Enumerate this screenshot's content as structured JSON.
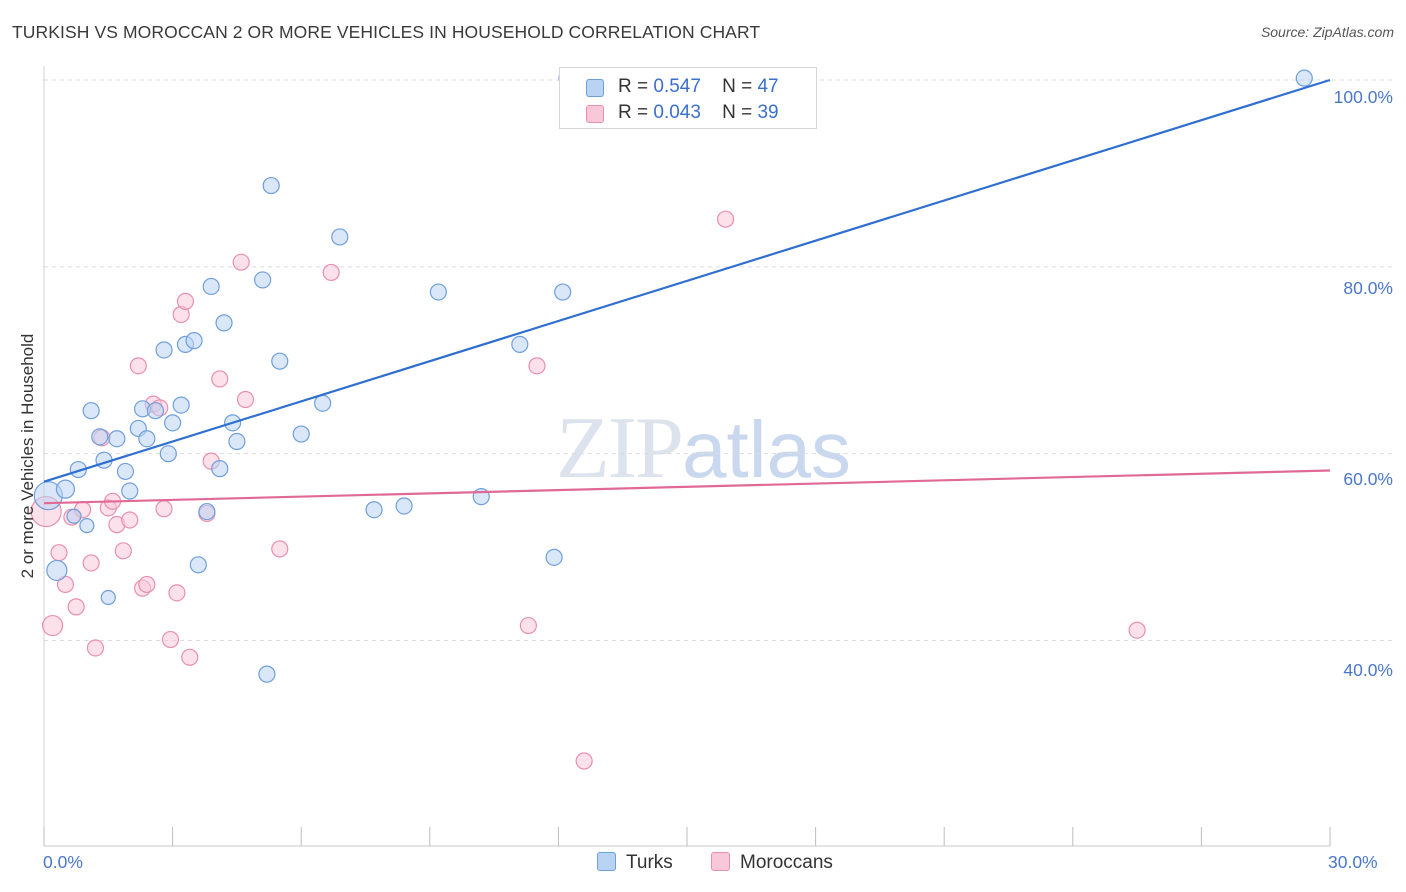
{
  "header": {
    "title": "TURKISH VS MOROCCAN 2 OR MORE VEHICLES IN HOUSEHOLD CORRELATION CHART",
    "source": "Source: ZipAtlas.com"
  },
  "watermark": {
    "zip": "ZIP",
    "atlas": "atlas"
  },
  "legend": {
    "rows": [
      {
        "r_label": "R =",
        "r_value": "0.547",
        "n_label": "N =",
        "n_value": "47"
      },
      {
        "r_label": "R =",
        "r_value": "0.043",
        "n_label": "N =",
        "n_value": "39"
      }
    ]
  },
  "bottom_legend": {
    "turks": "Turks",
    "moroccans": "Moroccans"
  },
  "colors": {
    "turks_fill": "#b9d3f3",
    "turks_stroke": "#6f9fdc",
    "turks_line": "#2f6fd0",
    "moroccans_fill": "#f9c8d8",
    "moroccans_stroke": "#e98fad",
    "moroccans_line": "#e06a95",
    "grid": "#dcdcdc",
    "tick_text": "#4a77c9"
  },
  "chart_data": {
    "type": "scatter",
    "title": "TURKISH VS MOROCCAN 2 OR MORE VEHICLES IN HOUSEHOLD CORRELATION CHART",
    "xlabel": "",
    "ylabel": "2 or more Vehicles in Household",
    "xlim": [
      0,
      30
    ],
    "ylim": [
      18,
      101.5
    ],
    "x_tick_labels": [
      "0.0%",
      "30.0%"
    ],
    "y_ticks": [
      40,
      60,
      80,
      100
    ],
    "y_tick_labels": [
      "40.0%",
      "60.0%",
      "80.0%",
      "100.0%"
    ],
    "grid": true,
    "legend_position": "top-center",
    "series": [
      {
        "name": "Turks",
        "r": 0.547,
        "n": 47,
        "trend": [
          [
            0,
            57.0
          ],
          [
            30,
            100.0
          ]
        ],
        "points": [
          [
            0.1,
            55.5,
            28
          ],
          [
            0.3,
            47.5,
            20
          ],
          [
            0.5,
            56.2,
            18
          ],
          [
            0.7,
            53.3,
            14
          ],
          [
            0.8,
            58.3,
            16
          ],
          [
            1.0,
            52.3,
            14
          ],
          [
            1.1,
            64.6,
            16
          ],
          [
            1.3,
            61.8,
            16
          ],
          [
            1.4,
            59.3,
            16
          ],
          [
            1.5,
            44.6,
            14
          ],
          [
            1.7,
            61.6,
            16
          ],
          [
            1.9,
            58.1,
            16
          ],
          [
            2.0,
            56.0,
            16
          ],
          [
            2.2,
            62.7,
            16
          ],
          [
            2.3,
            64.8,
            16
          ],
          [
            2.4,
            61.6,
            16
          ],
          [
            2.6,
            64.6,
            16
          ],
          [
            2.8,
            71.1,
            16
          ],
          [
            2.9,
            60.0,
            16
          ],
          [
            3.0,
            63.3,
            16
          ],
          [
            3.2,
            65.2,
            16
          ],
          [
            3.3,
            71.7,
            16
          ],
          [
            3.5,
            72.1,
            16
          ],
          [
            3.6,
            48.1,
            16
          ],
          [
            3.8,
            53.8,
            16
          ],
          [
            3.9,
            77.9,
            16
          ],
          [
            4.1,
            58.4,
            16
          ],
          [
            4.2,
            74.0,
            16
          ],
          [
            4.4,
            63.3,
            16
          ],
          [
            4.5,
            61.3,
            16
          ],
          [
            5.1,
            78.6,
            16
          ],
          [
            5.2,
            36.4,
            16
          ],
          [
            5.3,
            88.7,
            16
          ],
          [
            5.5,
            69.9,
            16
          ],
          [
            6.0,
            62.1,
            16
          ],
          [
            6.5,
            65.4,
            16
          ],
          [
            6.9,
            83.2,
            16
          ],
          [
            7.7,
            54.0,
            16
          ],
          [
            8.4,
            54.4,
            16
          ],
          [
            9.2,
            77.3,
            16
          ],
          [
            10.2,
            55.4,
            16
          ],
          [
            11.1,
            71.7,
            16
          ],
          [
            11.9,
            48.9,
            16
          ],
          [
            12.1,
            77.3,
            16
          ],
          [
            12.2,
            100.2,
            16
          ],
          [
            29.4,
            100.2,
            16
          ]
        ]
      },
      {
        "name": "Moroccans",
        "r": 0.043,
        "n": 39,
        "trend": [
          [
            0,
            54.7
          ],
          [
            30,
            58.2
          ]
        ],
        "points": [
          [
            0.05,
            53.8,
            30
          ],
          [
            0.2,
            41.6,
            20
          ],
          [
            0.35,
            49.4,
            16
          ],
          [
            0.5,
            46.0,
            16
          ],
          [
            0.65,
            53.2,
            16
          ],
          [
            0.75,
            43.6,
            16
          ],
          [
            0.9,
            54.0,
            16
          ],
          [
            1.1,
            48.3,
            16
          ],
          [
            1.2,
            39.2,
            16
          ],
          [
            1.35,
            61.7,
            16
          ],
          [
            1.5,
            54.2,
            16
          ],
          [
            1.6,
            54.9,
            16
          ],
          [
            1.7,
            52.4,
            16
          ],
          [
            1.85,
            49.6,
            16
          ],
          [
            2.0,
            52.9,
            16
          ],
          [
            2.2,
            69.4,
            16
          ],
          [
            2.3,
            45.6,
            16
          ],
          [
            2.4,
            46.0,
            16
          ],
          [
            2.55,
            65.3,
            16
          ],
          [
            2.7,
            64.9,
            16
          ],
          [
            2.8,
            54.1,
            16
          ],
          [
            2.95,
            40.1,
            16
          ],
          [
            3.1,
            45.1,
            16
          ],
          [
            3.2,
            74.9,
            16
          ],
          [
            3.3,
            76.3,
            16
          ],
          [
            3.4,
            38.2,
            16
          ],
          [
            3.8,
            53.6,
            16
          ],
          [
            3.9,
            59.2,
            16
          ],
          [
            4.1,
            68.0,
            16
          ],
          [
            4.6,
            80.5,
            16
          ],
          [
            4.7,
            65.8,
            16
          ],
          [
            5.5,
            49.8,
            16
          ],
          [
            6.7,
            79.4,
            16
          ],
          [
            11.3,
            41.6,
            16
          ],
          [
            11.5,
            69.4,
            16
          ],
          [
            12.6,
            27.1,
            16
          ],
          [
            15.9,
            85.1,
            16
          ],
          [
            25.5,
            41.1,
            16
          ]
        ]
      }
    ]
  }
}
